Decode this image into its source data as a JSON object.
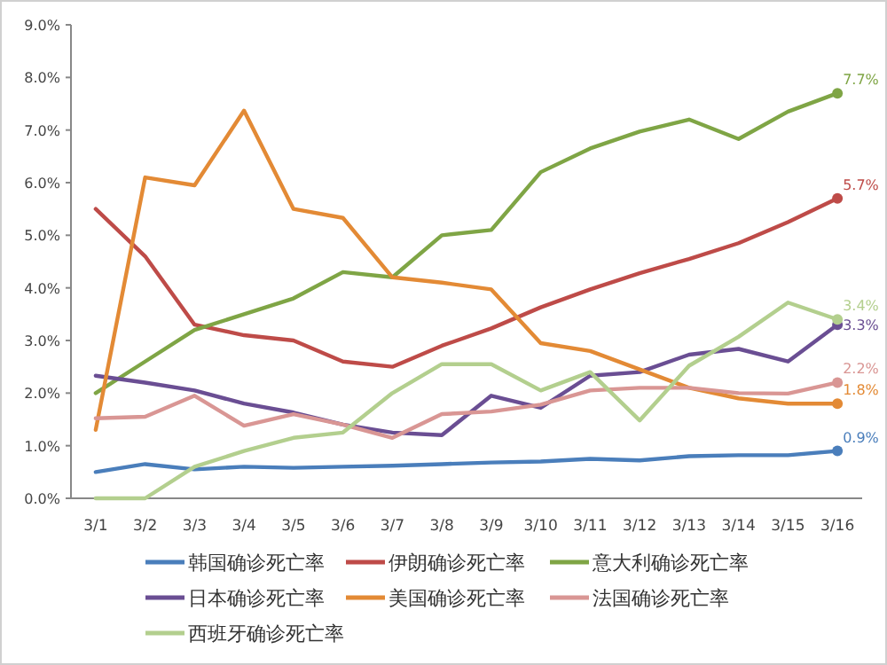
{
  "chart_data": {
    "type": "line",
    "categories": [
      "3/1",
      "3/2",
      "3/3",
      "3/4",
      "3/5",
      "3/6",
      "3/7",
      "3/8",
      "3/9",
      "3/10",
      "3/11",
      "3/12",
      "3/13",
      "3/14",
      "3/15",
      "3/16"
    ],
    "ylim": [
      0,
      9
    ],
    "yticks": [
      {
        "value": 0,
        "label": "0.0%"
      },
      {
        "value": 1,
        "label": "1.0%"
      },
      {
        "value": 2,
        "label": "2.0%"
      },
      {
        "value": 3,
        "label": "3.0%"
      },
      {
        "value": 4,
        "label": "4.0%"
      },
      {
        "value": 5,
        "label": "5.0%"
      },
      {
        "value": 6,
        "label": "6.0%"
      },
      {
        "value": 7,
        "label": "7.0%"
      },
      {
        "value": 8,
        "label": "8.0%"
      },
      {
        "value": 9,
        "label": "9.0%"
      }
    ],
    "grid": false,
    "legend": "bottom",
    "series": [
      {
        "name": "韩国确诊死亡率",
        "color": "#4a7ebb",
        "values": [
          0.5,
          0.65,
          0.55,
          0.6,
          0.58,
          0.6,
          0.62,
          0.65,
          0.68,
          0.7,
          0.75,
          0.72,
          0.8,
          0.82,
          0.82,
          0.9
        ],
        "value_labels": [
          null,
          null,
          null,
          null,
          null,
          null,
          null,
          null,
          null,
          null,
          null,
          null,
          null,
          null,
          null,
          "0.9%"
        ]
      },
      {
        "name": "伊朗确诊死亡率",
        "color": "#be4b48",
        "values": [
          5.5,
          4.6,
          3.3,
          3.1,
          3.0,
          2.6,
          2.5,
          2.9,
          3.23,
          3.63,
          3.97,
          4.28,
          4.55,
          4.85,
          5.25,
          5.7
        ],
        "value_labels": [
          null,
          null,
          null,
          null,
          null,
          null,
          null,
          null,
          null,
          null,
          null,
          null,
          null,
          null,
          null,
          "5.7%"
        ]
      },
      {
        "name": "意大利确诊死亡率",
        "color": "#7fa545",
        "values": [
          2.0,
          2.6,
          3.2,
          3.5,
          3.8,
          4.3,
          4.2,
          5.0,
          5.1,
          6.2,
          6.65,
          6.97,
          7.2,
          6.83,
          7.35,
          7.7
        ],
        "value_labels": [
          null,
          null,
          null,
          null,
          null,
          null,
          null,
          null,
          null,
          null,
          null,
          null,
          null,
          null,
          null,
          "7.7%"
        ]
      },
      {
        "name": "日本确诊死亡率",
        "color": "#6a4e93",
        "values": [
          2.33,
          2.2,
          2.05,
          1.8,
          1.63,
          1.4,
          1.25,
          1.2,
          1.95,
          1.72,
          2.33,
          2.4,
          2.73,
          2.84,
          2.6,
          3.3
        ],
        "value_labels": [
          null,
          null,
          null,
          null,
          null,
          null,
          null,
          null,
          null,
          null,
          null,
          null,
          null,
          null,
          null,
          "3.3%"
        ]
      },
      {
        "name": "美国确诊死亡率",
        "color": "#e38a35",
        "values": [
          1.3,
          6.1,
          5.95,
          7.37,
          5.5,
          5.33,
          4.2,
          4.1,
          3.97,
          2.95,
          2.8,
          2.45,
          2.1,
          1.9,
          1.8,
          1.8
        ],
        "value_labels": [
          null,
          null,
          null,
          null,
          null,
          null,
          null,
          null,
          null,
          null,
          null,
          null,
          null,
          null,
          null,
          "1.8%"
        ]
      },
      {
        "name": "法国确诊死亡率",
        "color": "#d99694",
        "values": [
          1.52,
          1.55,
          1.95,
          1.38,
          1.6,
          1.4,
          1.15,
          1.6,
          1.65,
          1.78,
          2.05,
          2.1,
          2.1,
          2.0,
          1.99,
          2.2
        ],
        "value_labels": [
          null,
          null,
          null,
          null,
          null,
          null,
          null,
          null,
          null,
          null,
          null,
          null,
          null,
          null,
          null,
          "2.2%"
        ]
      },
      {
        "name": "西班牙确诊死亡率",
        "color": "#b3cf8e",
        "values": [
          0,
          0,
          0.6,
          0.9,
          1.15,
          1.25,
          2.0,
          2.55,
          2.55,
          2.05,
          2.4,
          1.48,
          2.52,
          3.07,
          3.72,
          3.4
        ],
        "value_labels": [
          null,
          null,
          null,
          null,
          null,
          null,
          null,
          null,
          null,
          null,
          null,
          null,
          null,
          null,
          null,
          "3.4%"
        ]
      }
    ]
  }
}
